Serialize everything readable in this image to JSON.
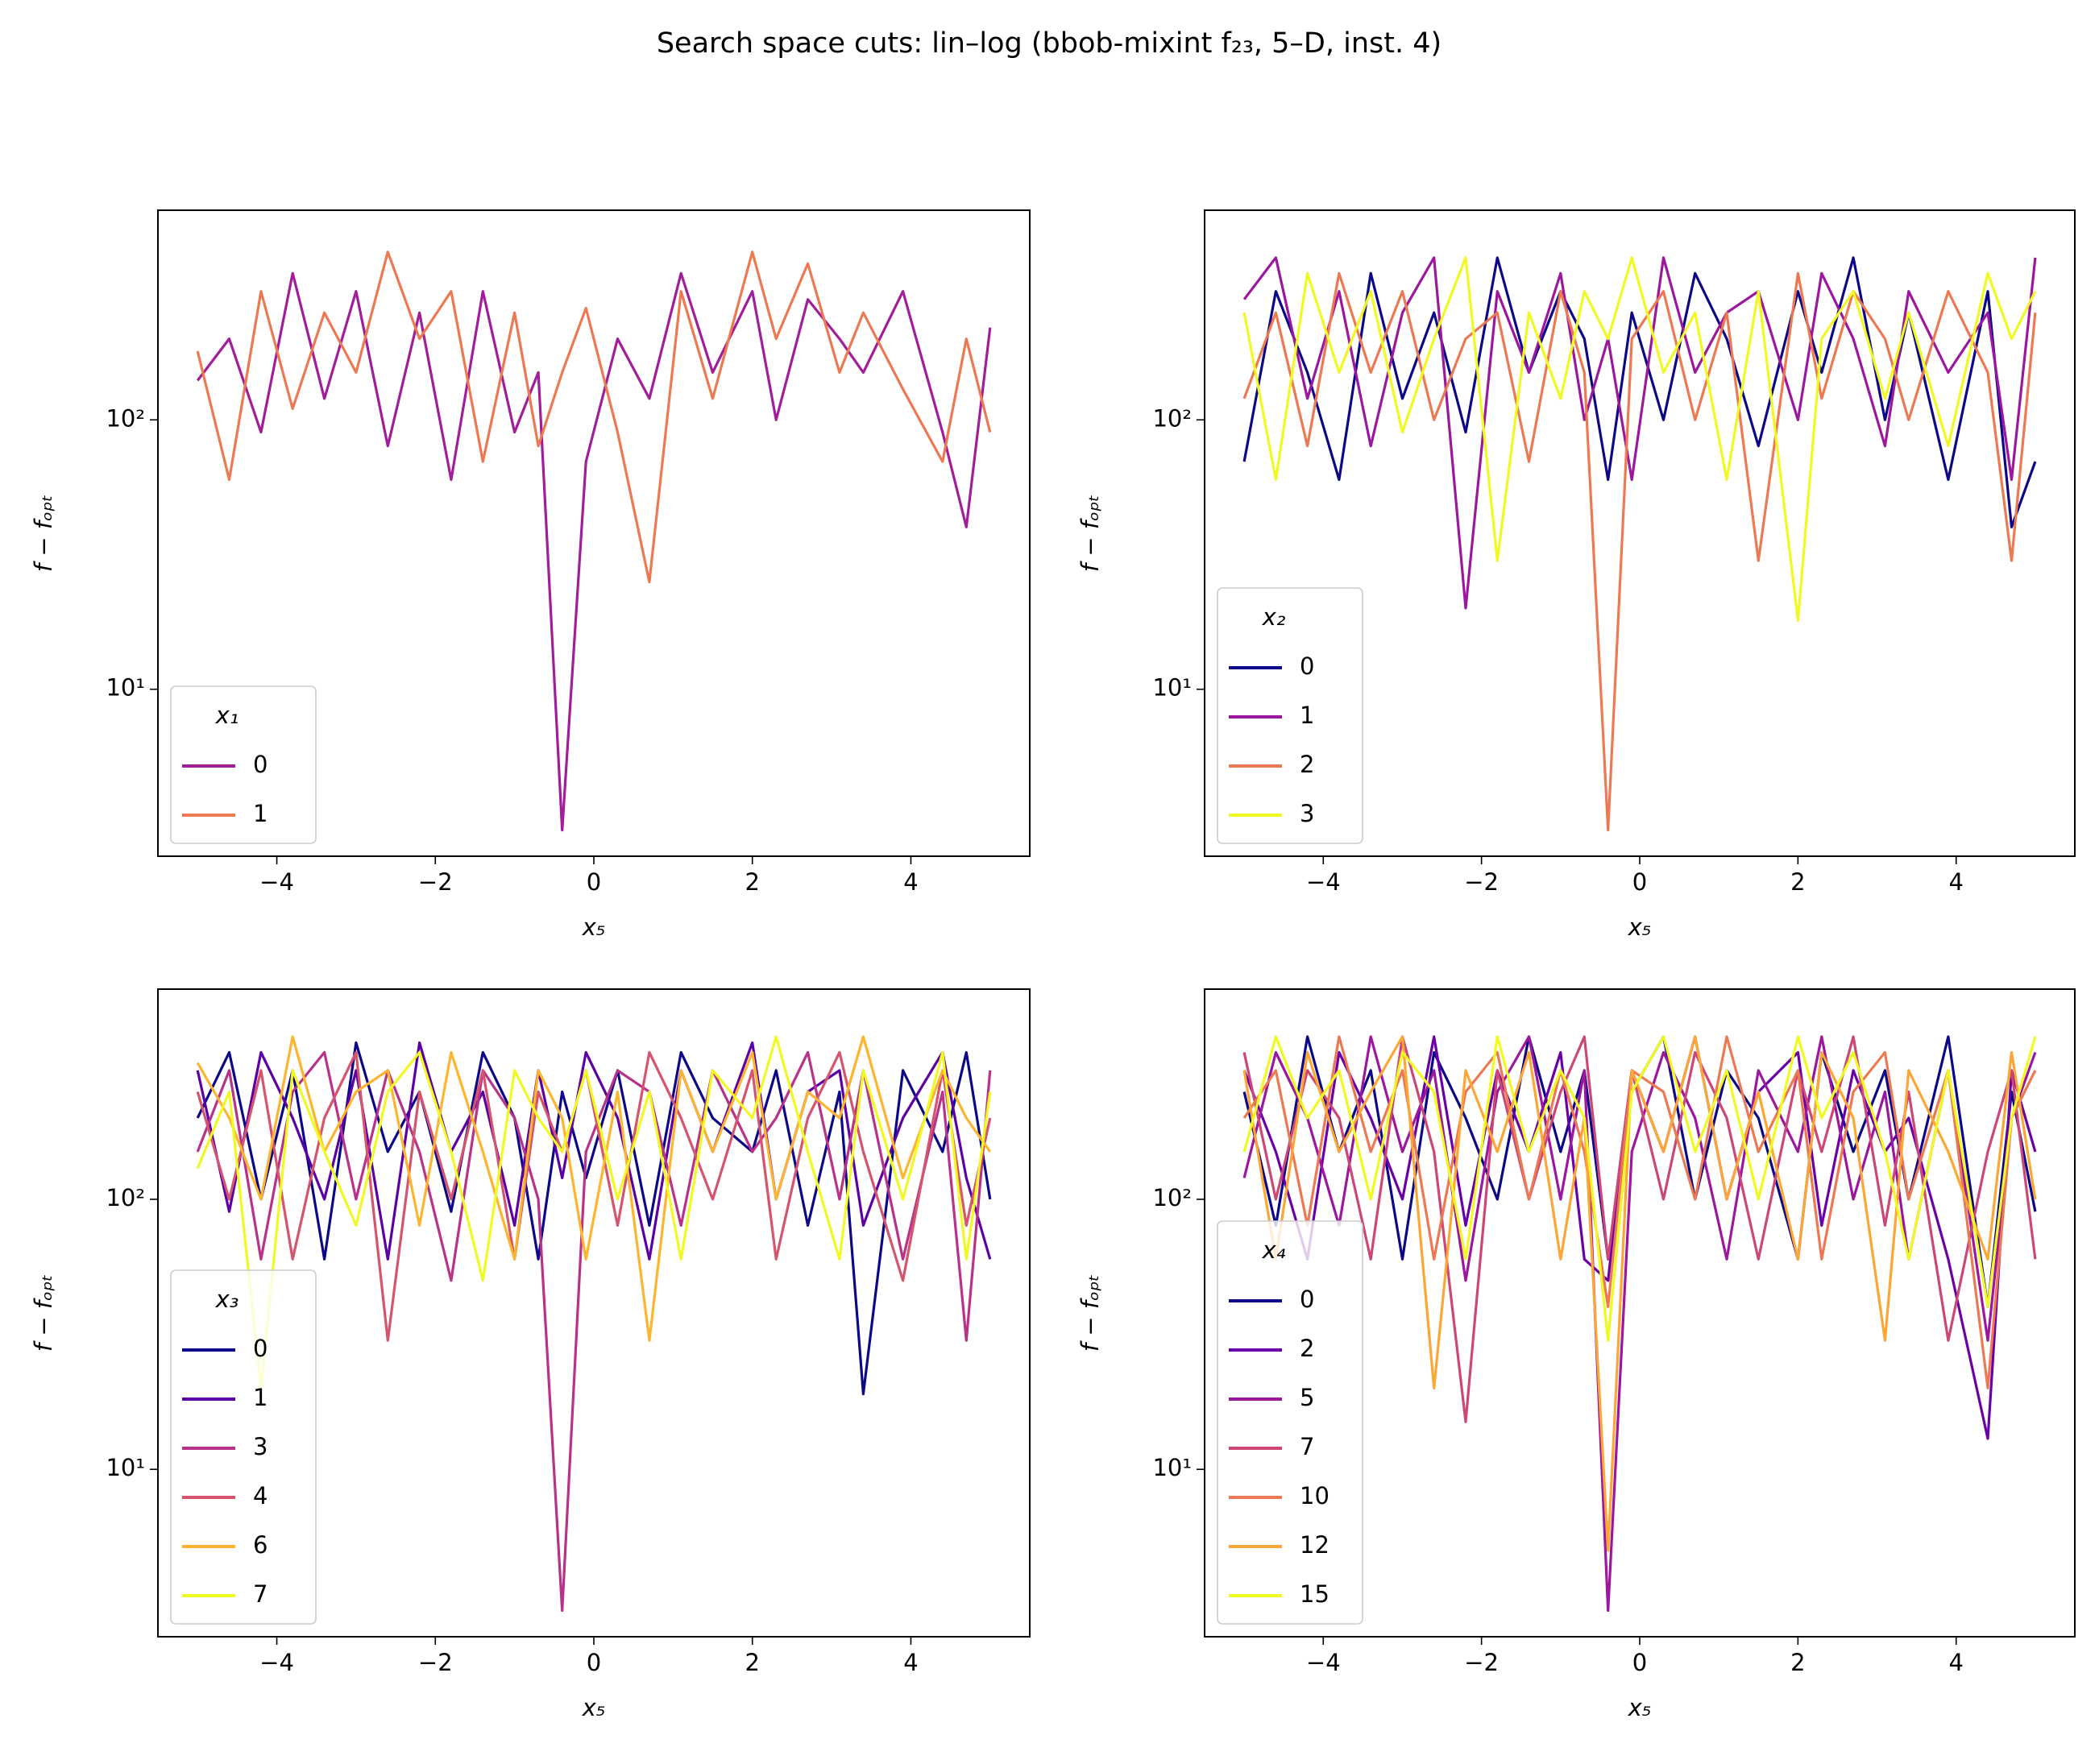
{
  "title": "Search space cuts: lin–log (bbob-mixint f₂₃, 5–D, inst. 4)",
  "chart_data": [
    {
      "type": "line",
      "xlabel": "x₅",
      "ylabel": "f − fₒₚₜ",
      "yscale": "log",
      "legend": "lower left",
      "legend_title": "x₁",
      "xlim": [
        -5.5,
        5.5
      ],
      "xticks": [
        {
          "value": -4,
          "label": "−4"
        },
        {
          "value": -2,
          "label": "−2"
        },
        0,
        2,
        4
      ],
      "ylim": [
        2.4,
        600
      ],
      "yticks": [
        {
          "value": 10,
          "label": "10¹"
        },
        {
          "value": 100,
          "label": "10²"
        }
      ],
      "x": [
        -5,
        -4.6,
        -4.2,
        -3.8,
        -3.4,
        -3,
        -2.6,
        -2.2,
        -1.8,
        -1.4,
        -1,
        -0.7,
        -0.4,
        -0.1,
        0.3,
        0.7,
        1.1,
        1.5,
        2,
        2.3,
        2.7,
        3.1,
        3.4,
        3.9,
        4.4,
        4.7,
        5
      ],
      "series": [
        {
          "name": "0",
          "color": "#a21d9a",
          "values": [
            140,
            200,
            90,
            350,
            120,
            300,
            80,
            250,
            60,
            300,
            90,
            150,
            3,
            70,
            200,
            120,
            350,
            150,
            300,
            100,
            280,
            200,
            150,
            300,
            90,
            40,
            220
          ]
        },
        {
          "name": "1",
          "color": "#ed7953",
          "values": [
            180,
            60,
            300,
            110,
            250,
            150,
            420,
            200,
            300,
            70,
            250,
            80,
            150,
            260,
            90,
            25,
            300,
            120,
            420,
            200,
            380,
            150,
            250,
            130,
            70,
            200,
            90
          ]
        }
      ]
    },
    {
      "type": "line",
      "xlabel": "x₅",
      "ylabel": "f − fₒₚₜ",
      "yscale": "log",
      "legend": "lower left",
      "legend_title": "x₂",
      "xlim": [
        -5.5,
        5.5
      ],
      "xticks": [
        {
          "value": -4,
          "label": "−4"
        },
        {
          "value": -2,
          "label": "−2"
        },
        0,
        2,
        4
      ],
      "ylim": [
        2.4,
        600
      ],
      "yticks": [
        {
          "value": 10,
          "label": "10¹"
        },
        {
          "value": 100,
          "label": "10²"
        }
      ],
      "x": [
        -5,
        -4.6,
        -4.2,
        -3.8,
        -3.4,
        -3,
        -2.6,
        -2.2,
        -1.8,
        -1.4,
        -1,
        -0.7,
        -0.4,
        -0.1,
        0.3,
        0.7,
        1.1,
        1.5,
        2,
        2.3,
        2.7,
        3.1,
        3.4,
        3.9,
        4.4,
        4.7,
        5
      ],
      "series": [
        {
          "name": "0",
          "color": "#0d0887",
          "values": [
            70,
            300,
            150,
            60,
            350,
            120,
            250,
            90,
            400,
            150,
            300,
            200,
            60,
            250,
            100,
            350,
            200,
            80,
            300,
            150,
            400,
            100,
            250,
            60,
            300,
            40,
            70
          ]
        },
        {
          "name": "1",
          "color": "#9c179e",
          "values": [
            280,
            400,
            120,
            300,
            80,
            250,
            400,
            20,
            300,
            150,
            350,
            100,
            200,
            60,
            400,
            150,
            250,
            300,
            100,
            350,
            200,
            80,
            300,
            150,
            250,
            60,
            400
          ]
        },
        {
          "name": "2",
          "color": "#ed7953",
          "values": [
            120,
            250,
            80,
            350,
            150,
            300,
            100,
            200,
            250,
            70,
            300,
            150,
            3,
            200,
            300,
            100,
            250,
            30,
            350,
            120,
            300,
            200,
            100,
            300,
            150,
            30,
            250
          ]
        },
        {
          "name": "3",
          "color": "#f0f921",
          "values": [
            250,
            60,
            350,
            150,
            300,
            90,
            200,
            400,
            30,
            250,
            120,
            300,
            200,
            400,
            150,
            250,
            60,
            300,
            18,
            200,
            300,
            120,
            250,
            80,
            350,
            200,
            300
          ]
        }
      ]
    },
    {
      "type": "line",
      "xlabel": "x₅",
      "ylabel": "f − fₒₚₜ",
      "yscale": "log",
      "legend": "lower left",
      "legend_title": "x₃",
      "xlim": [
        -5.5,
        5.5
      ],
      "xticks": [
        {
          "value": -4,
          "label": "−4"
        },
        {
          "value": -2,
          "label": "−2"
        },
        0,
        2,
        4
      ],
      "ylim": [
        2.4,
        600
      ],
      "yticks": [
        {
          "value": 10,
          "label": "10¹"
        },
        {
          "value": 100,
          "label": "10²"
        }
      ],
      "x": [
        -5,
        -4.6,
        -4.2,
        -3.8,
        -3.4,
        -3,
        -2.6,
        -2.2,
        -1.8,
        -1.4,
        -1,
        -0.7,
        -0.4,
        -0.1,
        0.3,
        0.7,
        1.1,
        1.5,
        2,
        2.3,
        2.7,
        3.1,
        3.4,
        3.9,
        4.4,
        4.7,
        5
      ],
      "series": [
        {
          "name": "0",
          "color": "#0d0887",
          "values": [
            200,
            350,
            100,
            300,
            60,
            380,
            150,
            250,
            90,
            350,
            200,
            60,
            250,
            120,
            300,
            80,
            350,
            200,
            150,
            300,
            80,
            250,
            19,
            300,
            150,
            350,
            100
          ]
        },
        {
          "name": "1",
          "color": "#5c01a6",
          "values": [
            300,
            90,
            350,
            200,
            100,
            300,
            60,
            380,
            150,
            250,
            80,
            300,
            120,
            350,
            200,
            60,
            300,
            150,
            380,
            100,
            250,
            300,
            80,
            200,
            350,
            120,
            60
          ]
        },
        {
          "name": "3",
          "color": "#b83289",
          "values": [
            150,
            300,
            60,
            250,
            350,
            100,
            300,
            150,
            50,
            300,
            200,
            100,
            3,
            150,
            300,
            250,
            80,
            300,
            150,
            200,
            350,
            100,
            300,
            60,
            250,
            30,
            300
          ]
        },
        {
          "name": "4",
          "color": "#d5546e",
          "values": [
            250,
            100,
            300,
            60,
            200,
            350,
            30,
            250,
            100,
            300,
            60,
            250,
            150,
            300,
            80,
            350,
            200,
            100,
            300,
            60,
            200,
            350,
            150,
            50,
            300,
            80,
            200
          ]
        },
        {
          "name": "6",
          "color": "#fdb42f",
          "values": [
            320,
            200,
            100,
            400,
            150,
            250,
            300,
            80,
            350,
            150,
            60,
            300,
            200,
            60,
            250,
            30,
            300,
            150,
            350,
            100,
            250,
            200,
            400,
            120,
            300,
            200,
            150
          ]
        },
        {
          "name": "7",
          "color": "#f0f921",
          "values": [
            130,
            250,
            20,
            300,
            150,
            80,
            250,
            350,
            150,
            50,
            300,
            200,
            150,
            300,
            100,
            250,
            60,
            300,
            200,
            400,
            150,
            60,
            300,
            100,
            350,
            60,
            250
          ]
        }
      ]
    },
    {
      "type": "line",
      "xlabel": "x₅",
      "ylabel": "f − fₒₚₜ",
      "yscale": "log",
      "legend": "lower left",
      "legend_title": "x₄",
      "xlim": [
        -5.5,
        5.5
      ],
      "xticks": [
        {
          "value": -4,
          "label": "−4"
        },
        {
          "value": -2,
          "label": "−2"
        },
        0,
        2,
        4
      ],
      "ylim": [
        2.4,
        600
      ],
      "yticks": [
        {
          "value": 10,
          "label": "10¹"
        },
        {
          "value": 100,
          "label": "10²"
        }
      ],
      "x": [
        -5,
        -4.6,
        -4.2,
        -3.8,
        -3.4,
        -3,
        -2.6,
        -2.2,
        -1.8,
        -1.4,
        -1,
        -0.7,
        -0.4,
        -0.1,
        0.3,
        0.7,
        1.1,
        1.5,
        2,
        2.3,
        2.7,
        3.1,
        3.4,
        3.9,
        4.4,
        4.7,
        5
      ],
      "series": [
        {
          "name": "0",
          "color": "#0d0887",
          "values": [
            250,
            80,
            400,
            150,
            300,
            60,
            350,
            200,
            100,
            400,
            150,
            300,
            60,
            250,
            400,
            100,
            300,
            200,
            60,
            350,
            150,
            300,
            100,
            400,
            40,
            250,
            90
          ]
        },
        {
          "name": "2",
          "color": "#6a00a8",
          "values": [
            300,
            150,
            60,
            350,
            200,
            100,
            400,
            80,
            300,
            150,
            350,
            60,
            50,
            300,
            150,
            400,
            100,
            250,
            350,
            80,
            300,
            150,
            200,
            60,
            13,
            300,
            150
          ]
        },
        {
          "name": "5",
          "color": "#9c179e",
          "values": [
            120,
            350,
            200,
            80,
            400,
            150,
            300,
            50,
            250,
            400,
            100,
            300,
            3,
            150,
            350,
            200,
            60,
            300,
            150,
            400,
            100,
            250,
            60,
            300,
            30,
            200,
            350
          ]
        },
        {
          "name": "7",
          "color": "#cc4778",
          "values": [
            350,
            100,
            300,
            200,
            60,
            400,
            150,
            15,
            300,
            100,
            250,
            400,
            60,
            300,
            100,
            350,
            200,
            60,
            300,
            150,
            400,
            80,
            250,
            30,
            150,
            300,
            60
          ]
        },
        {
          "name": "10",
          "color": "#ed7953",
          "values": [
            200,
            300,
            80,
            400,
            150,
            300,
            60,
            250,
            350,
            100,
            300,
            150,
            40,
            300,
            250,
            100,
            400,
            150,
            300,
            60,
            250,
            350,
            100,
            300,
            20,
            200,
            300
          ]
        },
        {
          "name": "12",
          "color": "#fca636",
          "values": [
            300,
            60,
            350,
            150,
            250,
            400,
            20,
            300,
            150,
            350,
            60,
            200,
            5,
            300,
            150,
            400,
            100,
            250,
            60,
            350,
            200,
            30,
            300,
            150,
            60,
            350,
            100
          ]
        },
        {
          "name": "15",
          "color": "#f0f921",
          "values": [
            150,
            400,
            200,
            300,
            100,
            350,
            250,
            60,
            400,
            150,
            300,
            200,
            30,
            250,
            400,
            150,
            300,
            100,
            400,
            200,
            350,
            150,
            60,
            300,
            40,
            200,
            400
          ]
        }
      ]
    }
  ]
}
